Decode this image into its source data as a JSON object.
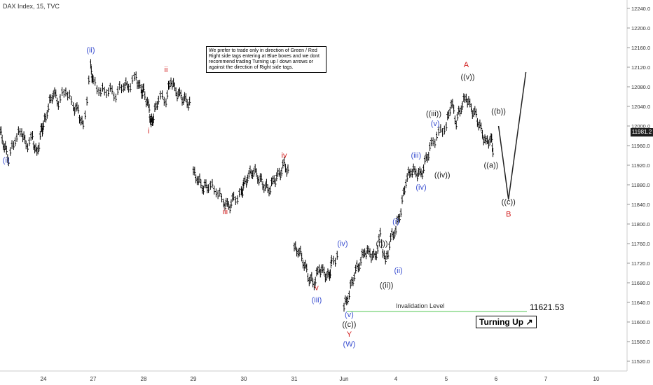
{
  "header": {
    "title": "DAX Index, 15, TVC"
  },
  "note": {
    "text": "We prefer to trade only in direction of Green / Red Right side tags entering at Blue boxes and we dont recommend trading Turning up / down arrows or against the direction of Right side tags."
  },
  "invalidation": {
    "label": "Invalidation Level",
    "value_label": "11621.53",
    "value": 11621.53,
    "color": "#66cc66"
  },
  "turning": {
    "label": "Turning Up"
  },
  "last_price": {
    "label": "11981.2",
    "value": 11981.2
  },
  "colors": {
    "blue": "#3a4fd0",
    "red": "#d11f1f",
    "black": "#222222",
    "bar": "#000000"
  },
  "chart_data": {
    "type": "line",
    "title": "",
    "xlabel": "",
    "ylabel": "",
    "ylim": [
      11500,
      12250
    ],
    "y_ticks": [
      "11520.0",
      "11560.0",
      "11600.0",
      "11640.0",
      "11680.0",
      "11720.0",
      "11760.0",
      "11800.0",
      "11840.0",
      "11880.0",
      "11920.0",
      "11960.0",
      "12000.0",
      "12040.0",
      "12080.0",
      "12120.0",
      "12160.0",
      "12200.0",
      "12240.0"
    ],
    "x_ticks": [
      "24",
      "27",
      "28",
      "29",
      "30",
      "31",
      "Jun",
      "4",
      "5",
      "6",
      "7",
      "10"
    ],
    "series": [
      {
        "values": [
          [
            0,
            11990
          ],
          [
            0.1,
            11960
          ],
          [
            0.2,
            11935
          ],
          [
            0.35,
            11975
          ],
          [
            0.5,
            11990
          ],
          [
            0.6,
            11960
          ],
          [
            0.75,
            11975
          ],
          [
            0.85,
            11940
          ],
          [
            0.95,
            11990
          ],
          [
            1.0,
            12000
          ],
          [
            1.1,
            12040
          ],
          [
            1.2,
            12070
          ],
          [
            1.3,
            12050
          ],
          [
            1.45,
            12075
          ],
          [
            1.6,
            12040
          ],
          [
            1.7,
            12030
          ],
          [
            1.8,
            11995
          ],
          [
            1.95,
            12120
          ],
          [
            2.0,
            12090
          ],
          [
            2.15,
            12070
          ],
          [
            2.3,
            12075
          ],
          [
            2.45,
            12065
          ],
          [
            2.6,
            12085
          ],
          [
            2.7,
            12080
          ],
          [
            2.85,
            12100
          ],
          [
            2.95,
            12070
          ],
          [
            3.0,
            12070
          ],
          [
            3.1,
            12040
          ],
          [
            3.15,
            12005
          ],
          [
            3.2,
            12020
          ],
          [
            3.3,
            12060
          ],
          [
            3.45,
            12055
          ],
          [
            3.55,
            12095
          ],
          [
            3.65,
            12070
          ],
          [
            3.75,
            12060
          ],
          [
            3.85,
            12050
          ],
          [
            3.95,
            12045
          ],
          [
            4.0,
            11905
          ],
          [
            4.1,
            11890
          ],
          [
            4.2,
            11875
          ],
          [
            4.3,
            11880
          ],
          [
            4.45,
            11870
          ],
          [
            4.6,
            11845
          ],
          [
            4.7,
            11835
          ],
          [
            4.8,
            11850
          ],
          [
            4.95,
            11860
          ],
          [
            5.0,
            11880
          ],
          [
            5.1,
            11900
          ],
          [
            5.2,
            11910
          ],
          [
            5.3,
            11895
          ],
          [
            5.4,
            11880
          ],
          [
            5.5,
            11870
          ],
          [
            5.6,
            11890
          ],
          [
            5.7,
            11900
          ],
          [
            5.8,
            11920
          ],
          [
            5.9,
            11905
          ],
          [
            6.0,
            11750
          ],
          [
            6.1,
            11745
          ],
          [
            6.2,
            11720
          ],
          [
            6.3,
            11690
          ],
          [
            6.4,
            11680
          ],
          [
            6.5,
            11710
          ],
          [
            6.6,
            11700
          ],
          [
            6.7,
            11690
          ],
          [
            6.75,
            11720
          ],
          [
            6.9,
            11740
          ],
          [
            7.0,
            11630
          ],
          [
            7.1,
            11660
          ],
          [
            7.2,
            11700
          ],
          [
            7.3,
            11720
          ],
          [
            7.4,
            11745
          ],
          [
            7.5,
            11740
          ],
          [
            7.6,
            11730
          ],
          [
            7.7,
            11775
          ],
          [
            7.8,
            11720
          ],
          [
            7.9,
            11770
          ],
          [
            8.0,
            11790
          ],
          [
            8.1,
            11830
          ],
          [
            8.2,
            11890
          ],
          [
            8.3,
            11910
          ],
          [
            8.4,
            11905
          ],
          [
            8.5,
            11900
          ],
          [
            8.6,
            11930
          ],
          [
            8.7,
            11960
          ],
          [
            8.85,
            11985
          ],
          [
            9.0,
            12000
          ],
          [
            9.1,
            12050
          ],
          [
            9.2,
            12010
          ],
          [
            9.3,
            12040
          ],
          [
            9.4,
            12060
          ],
          [
            9.5,
            12035
          ],
          [
            9.6,
            12020
          ],
          [
            9.7,
            11990
          ],
          [
            9.8,
            11965
          ],
          [
            9.9,
            11975
          ],
          [
            9.95,
            11945
          ]
        ]
      },
      {
        "values": [
          [
            10.05,
            12000
          ],
          [
            10.25,
            11850
          ],
          [
            10.6,
            12110
          ]
        ]
      }
    ],
    "labels": [
      {
        "text": "(i)",
        "x": 0.14,
        "y": 11925,
        "color": "blue"
      },
      {
        "text": "(ii)",
        "x": 1.95,
        "y": 12150,
        "color": "blue"
      },
      {
        "text": "i",
        "x": 3.1,
        "y": 11985,
        "color": "red"
      },
      {
        "text": "ii",
        "x": 3.45,
        "y": 12110,
        "color": "red"
      },
      {
        "text": "iii",
        "x": 4.63,
        "y": 11820,
        "color": "red"
      },
      {
        "text": "iv",
        "x": 5.8,
        "y": 11935,
        "color": "red"
      },
      {
        "text": "v",
        "x": 6.45,
        "y": 11665,
        "color": "red"
      },
      {
        "text": "(iii)",
        "x": 6.45,
        "y": 11640,
        "color": "blue"
      },
      {
        "text": "(iv)",
        "x": 6.97,
        "y": 11755,
        "color": "blue"
      },
      {
        "text": "(v)",
        "x": 7.1,
        "y": 11610,
        "color": "blue"
      },
      {
        "text": "((c))",
        "x": 7.1,
        "y": 11590,
        "color": "black"
      },
      {
        "text": "Y",
        "x": 7.1,
        "y": 11570,
        "color": "red"
      },
      {
        "text": "(W)",
        "x": 7.1,
        "y": 11550,
        "color": "blue"
      },
      {
        "text": "((i))",
        "x": 7.73,
        "y": 11755,
        "color": "black"
      },
      {
        "text": "((ii))",
        "x": 7.82,
        "y": 11670,
        "color": "black"
      },
      {
        "text": "(i)",
        "x": 8.0,
        "y": 11800,
        "color": "blue"
      },
      {
        "text": "(ii)",
        "x": 8.05,
        "y": 11700,
        "color": "blue"
      },
      {
        "text": "(iii)",
        "x": 8.4,
        "y": 11935,
        "color": "blue"
      },
      {
        "text": "(iv)",
        "x": 8.5,
        "y": 11870,
        "color": "blue"
      },
      {
        "text": "((iii))",
        "x": 8.75,
        "y": 12020,
        "color": "black"
      },
      {
        "text": "(v)",
        "x": 8.78,
        "y": 12000,
        "color": "blue"
      },
      {
        "text": "((iv))",
        "x": 8.92,
        "y": 11895,
        "color": "black"
      },
      {
        "text": "A",
        "x": 9.4,
        "y": 12120,
        "color": "red"
      },
      {
        "text": "((v))",
        "x": 9.43,
        "y": 12095,
        "color": "black"
      },
      {
        "text": "((b))",
        "x": 10.05,
        "y": 12025,
        "color": "black"
      },
      {
        "text": "((a))",
        "x": 9.9,
        "y": 11915,
        "color": "black"
      },
      {
        "text": "((c))",
        "x": 10.25,
        "y": 11840,
        "color": "black"
      },
      {
        "text": "B",
        "x": 10.25,
        "y": 11815,
        "color": "red"
      }
    ]
  }
}
